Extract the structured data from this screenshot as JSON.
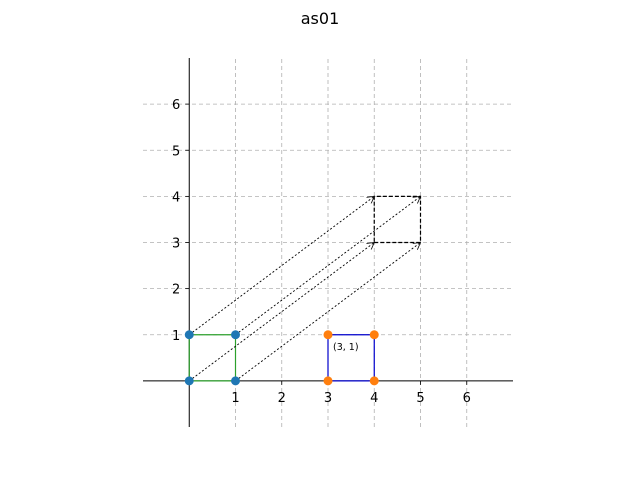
{
  "chart_data": {
    "type": "scatter",
    "title": "as01",
    "xlabel": "",
    "ylabel": "",
    "xlim": [
      -1,
      7
    ],
    "ylim": [
      -1,
      7
    ],
    "x_ticks": [
      1,
      2,
      3,
      4,
      5,
      6
    ],
    "y_ticks": [
      1,
      2,
      3,
      4,
      5,
      6
    ],
    "grid": true,
    "grid_style": "dashed",
    "spines": "centered at origin",
    "colors": {
      "original_square": "#2ca02c",
      "original_points": "#1f77b4",
      "moved_square": "#0000cc",
      "moved_points": "#ff7f0e",
      "translated_square": "#000000",
      "arrows": "#000000",
      "grid": "#b0b0b0"
    },
    "series": [
      {
        "role": "original_square_points",
        "points": [
          [
            0,
            0
          ],
          [
            1,
            0
          ],
          [
            1,
            1
          ],
          [
            0,
            1
          ]
        ]
      },
      {
        "role": "moved_square_points",
        "points": [
          [
            3,
            0
          ],
          [
            4,
            0
          ],
          [
            4,
            1
          ],
          [
            3,
            1
          ]
        ]
      }
    ],
    "shapes": [
      {
        "role": "original-square",
        "points": [
          [
            0,
            0
          ],
          [
            1,
            0
          ],
          [
            1,
            1
          ],
          [
            0,
            1
          ]
        ],
        "style": "solid",
        "color": "#2ca02c"
      },
      {
        "role": "moved-square",
        "points": [
          [
            3,
            0
          ],
          [
            4,
            0
          ],
          [
            4,
            1
          ],
          [
            3,
            1
          ]
        ],
        "style": "solid",
        "color": "#0000cc"
      },
      {
        "role": "translated-square",
        "points": [
          [
            4,
            3
          ],
          [
            5,
            3
          ],
          [
            5,
            4
          ],
          [
            4,
            4
          ]
        ],
        "style": "dashed",
        "color": "#000000"
      }
    ],
    "arrows": [
      {
        "from": [
          0,
          0
        ],
        "to": [
          4,
          3
        ]
      },
      {
        "from": [
          1,
          0
        ],
        "to": [
          5,
          3
        ]
      },
      {
        "from": [
          1,
          1
        ],
        "to": [
          5,
          4
        ]
      },
      {
        "from": [
          0,
          1
        ],
        "to": [
          4,
          4
        ]
      }
    ],
    "annotations": [
      {
        "text": "(3, 1)",
        "at": [
          3,
          1
        ]
      }
    ]
  }
}
